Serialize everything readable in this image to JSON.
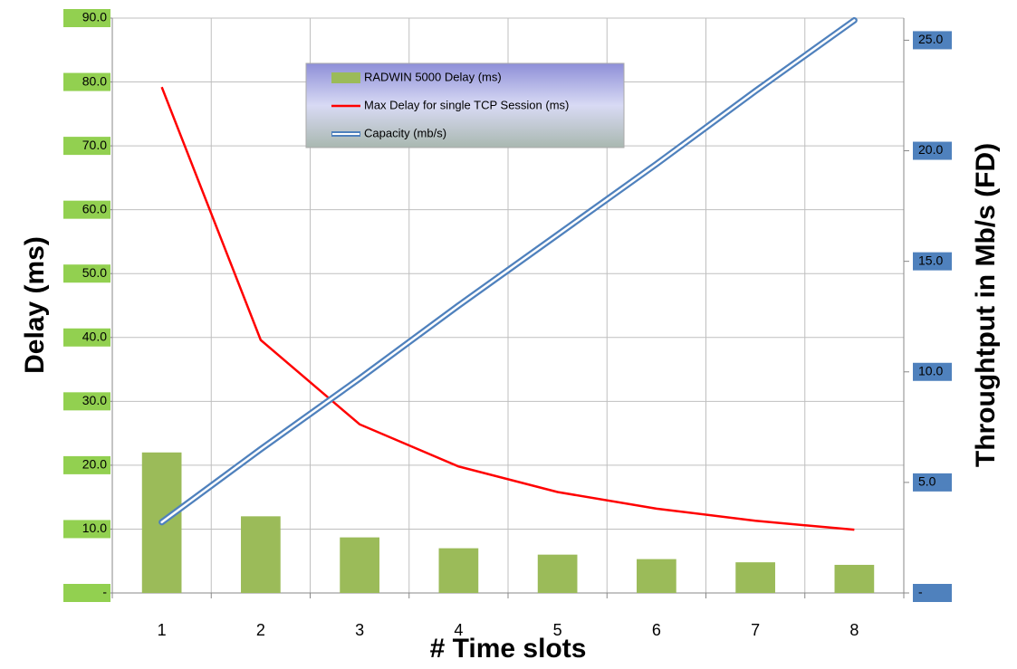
{
  "chart_data": {
    "type": "bar",
    "categories": [
      "1",
      "2",
      "3",
      "4",
      "5",
      "6",
      "7",
      "8"
    ],
    "x_label": "# Time slots",
    "y_label": "Delay (ms)",
    "y2_label": "Throughtput in Mb/s (FD)",
    "ylim": [
      0,
      90
    ],
    "yticks": [
      {
        "value": 0,
        "label": "-"
      },
      {
        "value": 10,
        "label": "10.0"
      },
      {
        "value": 20,
        "label": "20.0"
      },
      {
        "value": 30,
        "label": "30.0"
      },
      {
        "value": 40,
        "label": "40.0"
      },
      {
        "value": 50,
        "label": "50.0"
      },
      {
        "value": 60,
        "label": "60.0"
      },
      {
        "value": 70,
        "label": "70.0"
      },
      {
        "value": 80,
        "label": "80.0"
      },
      {
        "value": 90,
        "label": "90.0"
      }
    ],
    "y2lim": [
      0,
      26
    ],
    "y2ticks": [
      {
        "value": 0,
        "label": "-"
      },
      {
        "value": 5,
        "label": "5.0"
      },
      {
        "value": 10,
        "label": "10.0"
      },
      {
        "value": 15,
        "label": "15.0"
      },
      {
        "value": 20,
        "label": "20.0"
      },
      {
        "value": 25,
        "label": "25.0"
      }
    ],
    "grid": true,
    "series": [
      {
        "name": "RADWIN 5000 Delay (ms)",
        "type": "bar",
        "color": "#9bbb59",
        "values": [
          22,
          12,
          8.7,
          7,
          6,
          5.3,
          4.8,
          4.4
        ]
      },
      {
        "name": "Max Delay for single TCP Session (ms)",
        "type": "line",
        "color": "#ff0000",
        "values": [
          79.2,
          39.6,
          26.4,
          19.8,
          15.8,
          13.2,
          11.3,
          9.9
        ]
      },
      {
        "name": "Capacity (mb/s)",
        "type": "line",
        "axis": "y2",
        "color": "#4f81bd",
        "values": [
          3.2,
          6.5,
          9.7,
          13.0,
          16.2,
          19.4,
          22.7,
          25.9
        ]
      }
    ]
  }
}
